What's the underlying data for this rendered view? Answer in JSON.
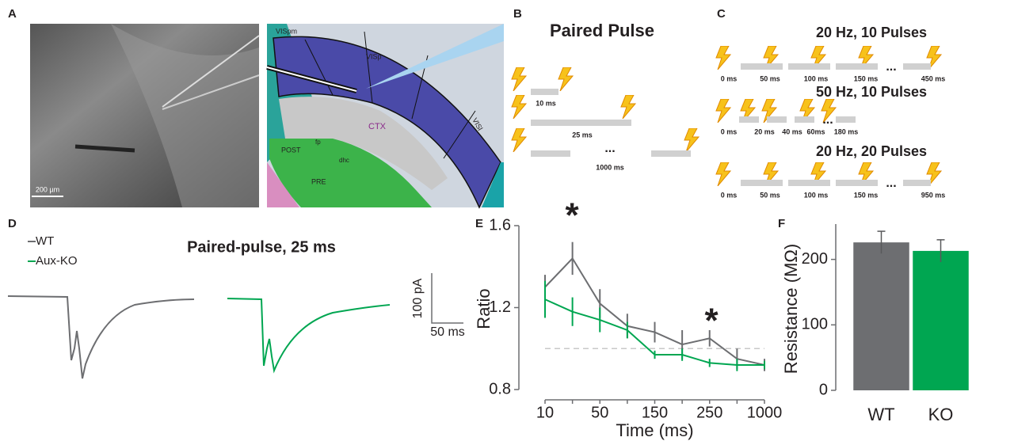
{
  "panels": {
    "A": {
      "label": "A",
      "scale_bar": "200 µm",
      "atlas_labels": [
        "VISpm",
        "VISp",
        "VISl",
        "CTX",
        "POST",
        "fp",
        "dhc",
        "PRE"
      ]
    },
    "B": {
      "label": "B",
      "title": "Paired Pulse",
      "intervals": [
        "10 ms",
        "25 ms",
        "...",
        "1000 ms"
      ]
    },
    "C": {
      "label": "C",
      "protocols": [
        {
          "title": "20 Hz, 10 Pulses",
          "times": [
            "0 ms",
            "50 ms",
            "100 ms",
            "150 ms",
            "...",
            "450 ms"
          ]
        },
        {
          "title": "50 Hz, 10 Pulses",
          "times": [
            "0 ms",
            "20 ms",
            "40 ms",
            "60ms",
            "...",
            "180 ms"
          ]
        },
        {
          "title": "20 Hz, 20 Pulses",
          "times": [
            "0 ms",
            "50 ms",
            "100 ms",
            "150 ms",
            "...",
            "950 ms"
          ]
        }
      ]
    },
    "D": {
      "label": "D",
      "legend": [
        "WT",
        "Aux-KO"
      ],
      "title": "Paired-pulse, 25 ms",
      "scale_y": "100 pA",
      "scale_x": "50 ms"
    },
    "E": {
      "label": "E"
    },
    "F": {
      "label": "F"
    }
  },
  "chart_data": [
    {
      "type": "line",
      "ylabel": "Ratio",
      "xlabel": "Time (ms)",
      "categories": [
        "10",
        null,
        "50",
        null,
        "150",
        null,
        "250",
        null,
        "1000"
      ],
      "ylim": [
        0.8,
        1.6
      ],
      "yticks": [
        {
          "value": 0.8,
          "label": "0.8"
        },
        {
          "value": 1.2,
          "label": "1.2"
        },
        {
          "value": 1.6,
          "label": "1.6"
        }
      ],
      "reference_line": 1.0,
      "annotations": [
        "*",
        "*"
      ],
      "series": [
        {
          "name": "WT",
          "color": "#6d6e71",
          "values": [
            1.3,
            1.44,
            1.22,
            1.11,
            1.08,
            1.02,
            1.05,
            0.95,
            0.92
          ],
          "errors": [
            0.06,
            0.08,
            0.07,
            0.06,
            0.05,
            0.07,
            0.04,
            0.05,
            0.03
          ]
        },
        {
          "name": "Aux-KO",
          "color": "#00a651",
          "values": [
            1.24,
            1.18,
            1.14,
            1.09,
            0.97,
            0.97,
            0.93,
            0.92,
            0.92
          ],
          "errors": [
            0.09,
            0.07,
            0.06,
            0.04,
            0.02,
            0.03,
            0.02,
            0.03,
            0.02
          ]
        }
      ]
    },
    {
      "type": "bar",
      "ylabel": "Resistance (MΩ)",
      "categories": [
        "WT",
        "KO"
      ],
      "values": [
        226,
        213
      ],
      "errors": [
        17,
        17
      ],
      "colors": [
        "#6d6e71",
        "#00a651"
      ],
      "ylim": [
        0,
        254
      ],
      "yticks": [
        0,
        100,
        200
      ]
    }
  ]
}
